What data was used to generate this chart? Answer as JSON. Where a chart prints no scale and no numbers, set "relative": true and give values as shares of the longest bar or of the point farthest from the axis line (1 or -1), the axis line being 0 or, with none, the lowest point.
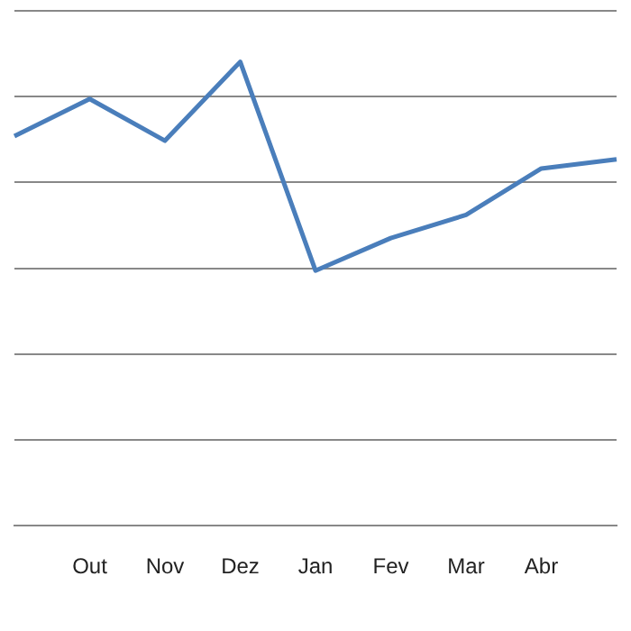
{
  "chart_data": {
    "type": "line",
    "relative": true,
    "categories": [
      null,
      "Out",
      "Nov",
      "Dez",
      "Jan",
      "Fev",
      "Mar",
      "Abr",
      null
    ],
    "series": [
      {
        "color": "#4a7ebb",
        "values": [
          0.84,
          0.92,
          0.83,
          1,
          0.55,
          0.62,
          0.67,
          0.77,
          0.79
        ]
      }
    ],
    "grid": "y",
    "legend": false,
    "marker": "none",
    "line_style": "solid"
  }
}
